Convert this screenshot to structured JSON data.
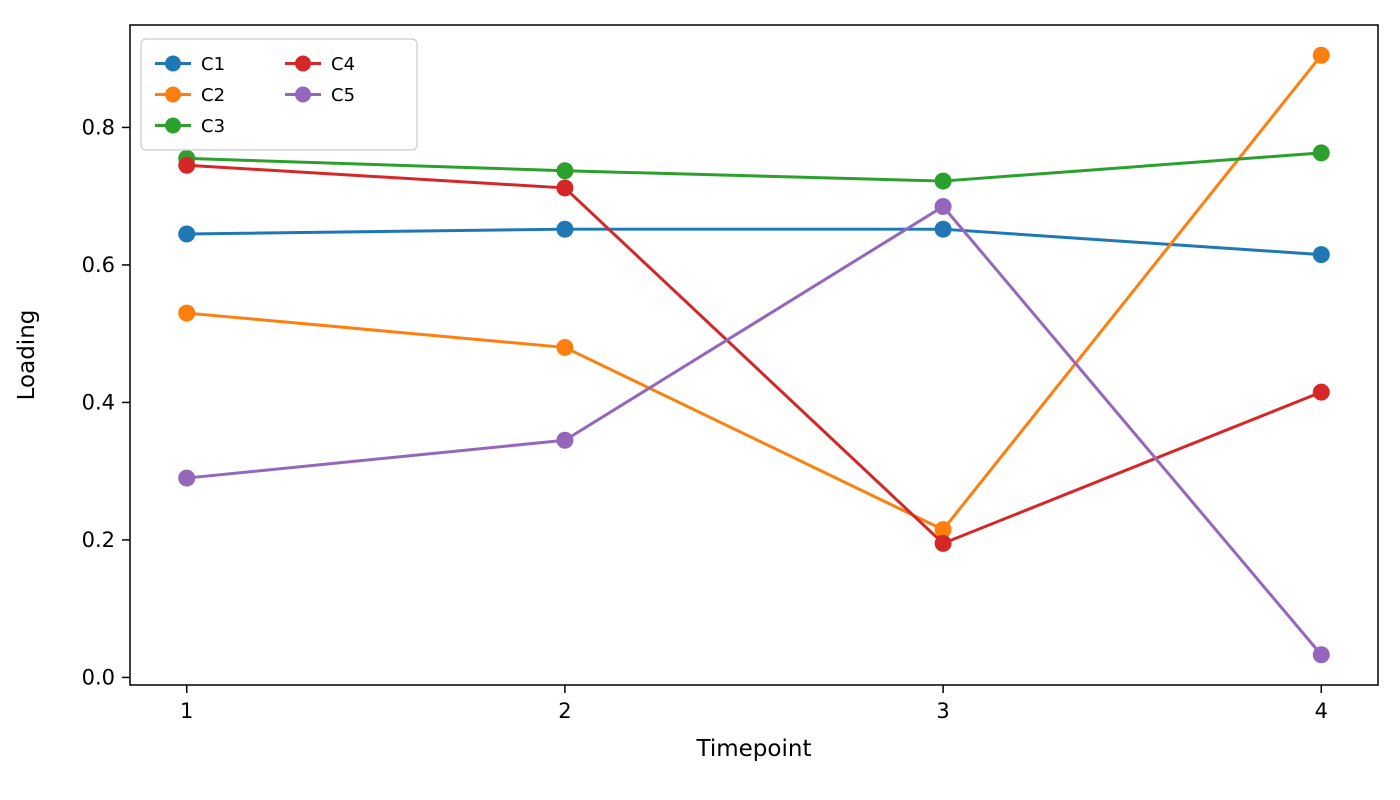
{
  "chart_data": {
    "type": "line",
    "title": "",
    "xlabel": "Timepoint",
    "ylabel": "Loading",
    "x": [
      1,
      2,
      3,
      4
    ],
    "xticks": [
      1,
      2,
      3,
      4
    ],
    "yticks": [
      0.0,
      0.2,
      0.4,
      0.6,
      0.8
    ],
    "xlim": [
      0.85,
      4.15
    ],
    "ylim": [
      -0.011,
      0.949
    ],
    "grid": false,
    "legend_position": "upper left",
    "legend_columns": 2,
    "series": [
      {
        "name": "C1",
        "color": "#1f77b4",
        "values": [
          0.645,
          0.652,
          0.652,
          0.615
        ]
      },
      {
        "name": "C2",
        "color": "#ff7f0e",
        "values": [
          0.53,
          0.48,
          0.215,
          0.905
        ]
      },
      {
        "name": "C3",
        "color": "#2ca02c",
        "values": [
          0.755,
          0.737,
          0.722,
          0.763
        ]
      },
      {
        "name": "C4",
        "color": "#d62728",
        "values": [
          0.745,
          0.712,
          0.195,
          0.415
        ]
      },
      {
        "name": "C5",
        "color": "#9467bd",
        "values": [
          0.29,
          0.345,
          0.685,
          0.033
        ]
      }
    ]
  }
}
